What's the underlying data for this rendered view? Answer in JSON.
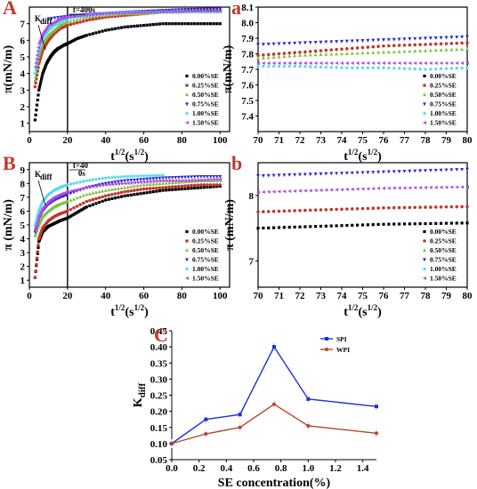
{
  "colors": {
    "series": [
      "#000000",
      "#c0392b",
      "#7dc242",
      "#2a2ad0",
      "#56d8f0",
      "#b24de0"
    ],
    "spi": "#1c2fd6",
    "wpi": "#b5462a",
    "letter": "#c0392b"
  },
  "chart_data": [
    {
      "id": "A",
      "type": "scatter",
      "letter": "A",
      "xlabel_base": "t",
      "xlabel_sup": "1/2",
      "xlabel_unit_base": "(s",
      "xlabel_unit_sup": "1/2",
      "xlabel_close": ")",
      "ylabel": "π(mN/m)",
      "xlim": [
        0,
        105
      ],
      "ylim": [
        0.5,
        8
      ],
      "xticks": [
        0,
        20,
        40,
        60,
        80,
        100
      ],
      "yticks": [
        1,
        2,
        3,
        4,
        5,
        6,
        7
      ],
      "vline_x": 20,
      "annotations": [
        "K",
        "diff",
        "t=400s"
      ],
      "legend": [
        "0.00%SE",
        "0.25%SE",
        "0.50%SE",
        "0.75%SE",
        "1.00%SE",
        "1.50%SE"
      ],
      "series": [
        {
          "name": "0.00%SE",
          "x": [
            3,
            5,
            7,
            9,
            11,
            13,
            15,
            18,
            20,
            25,
            30,
            40,
            50,
            60,
            70,
            80,
            90,
            100
          ],
          "y": [
            1.2,
            3.0,
            4.0,
            4.6,
            5.0,
            5.3,
            5.5,
            5.7,
            5.8,
            6.1,
            6.3,
            6.6,
            6.8,
            6.9,
            7.0,
            7.0,
            7.0,
            7.0
          ]
        },
        {
          "name": "0.25%SE",
          "x": [
            3,
            5,
            7,
            10,
            13,
            16,
            20,
            30,
            40,
            50,
            60,
            70,
            80,
            90,
            100
          ],
          "y": [
            3.2,
            4.6,
            5.4,
            6.0,
            6.4,
            6.7,
            6.9,
            7.2,
            7.4,
            7.5,
            7.6,
            7.7,
            7.7,
            7.8,
            7.8
          ]
        },
        {
          "name": "0.50%SE",
          "x": [
            3,
            5,
            7,
            10,
            13,
            16,
            20,
            30,
            40,
            50,
            60,
            70,
            80,
            90,
            100
          ],
          "y": [
            3.6,
            5.0,
            5.8,
            6.3,
            6.6,
            6.9,
            7.1,
            7.4,
            7.5,
            7.6,
            7.6,
            7.7,
            7.7,
            7.8,
            7.8
          ]
        },
        {
          "name": "0.75%SE",
          "x": [
            10,
            20,
            30,
            40,
            50,
            60,
            70,
            80,
            90,
            100
          ],
          "y": [
            7.3,
            7.45,
            7.55,
            7.62,
            7.7,
            7.75,
            7.8,
            7.85,
            7.88,
            7.9
          ]
        },
        {
          "name": "1.00%SE",
          "x": [
            3,
            5,
            7,
            10,
            13,
            16,
            20,
            30,
            40,
            50,
            60,
            70,
            80,
            90,
            100
          ],
          "y": [
            4.0,
            5.4,
            6.1,
            6.6,
            6.9,
            7.1,
            7.3,
            7.5,
            7.6,
            7.7,
            7.7,
            7.7,
            7.7,
            7.7,
            7.7
          ]
        },
        {
          "name": "1.50%SE",
          "x": [
            3,
            5,
            7,
            10,
            13,
            16,
            20,
            30,
            40,
            50,
            60,
            70,
            80,
            90,
            100
          ],
          "y": [
            4.4,
            5.8,
            6.4,
            6.9,
            7.1,
            7.3,
            7.4,
            7.5,
            7.6,
            7.65,
            7.7,
            7.72,
            7.75,
            7.75,
            7.75
          ]
        }
      ]
    },
    {
      "id": "a",
      "type": "scatter",
      "letter": "a",
      "xlabel_base": "t",
      "xlabel_sup": "1/2",
      "xlabel_unit_base": "(s",
      "xlabel_unit_sup": "1/2",
      "xlabel_close": ")",
      "ylabel": "π(mN/m)",
      "xlim": [
        70,
        80
      ],
      "ylim": [
        7.3,
        8.1
      ],
      "xticks": [
        70,
        71,
        72,
        73,
        74,
        75,
        76,
        77,
        78,
        79,
        80
      ],
      "yticks": [
        7.4,
        7.5,
        7.6,
        7.7,
        7.8,
        7.9,
        8.0,
        8.1
      ],
      "legend": [
        "0.00%SE",
        "0.25%SE",
        "0.50%SE",
        "0.75%SE",
        "1.00%SE",
        "1.50%SE"
      ],
      "series": [
        {
          "name": "0.25%SE",
          "x": [
            70,
            72,
            74,
            76,
            78,
            80
          ],
          "y": [
            7.79,
            7.81,
            7.83,
            7.85,
            7.86,
            7.87
          ]
        },
        {
          "name": "0.50%SE",
          "x": [
            70,
            72,
            74,
            76,
            78,
            80
          ],
          "y": [
            7.77,
            7.79,
            7.8,
            7.81,
            7.82,
            7.83
          ]
        },
        {
          "name": "0.75%SE",
          "x": [
            70,
            72,
            74,
            76,
            78,
            80
          ],
          "y": [
            7.86,
            7.87,
            7.88,
            7.89,
            7.9,
            7.91
          ]
        },
        {
          "name": "1.00%SE",
          "x": [
            70,
            72,
            74,
            76,
            78,
            80
          ],
          "y": [
            7.72,
            7.72,
            7.71,
            7.71,
            7.7,
            7.71
          ]
        },
        {
          "name": "1.50%SE",
          "x": [
            70,
            72,
            74,
            76,
            78,
            80
          ],
          "y": [
            7.74,
            7.74,
            7.74,
            7.74,
            7.74,
            7.74
          ]
        }
      ]
    },
    {
      "id": "B",
      "type": "scatter",
      "letter": "B",
      "xlabel_base": "t",
      "xlabel_sup": "1/2",
      "xlabel_unit_base": "(s",
      "xlabel_unit_sup": "1/2",
      "xlabel_close": ")",
      "ylabel": "π (mN/m)",
      "xlim": [
        0,
        105
      ],
      "ylim": [
        0.5,
        9.5
      ],
      "xticks": [
        0,
        20,
        40,
        60,
        80,
        100
      ],
      "yticks": [
        1,
        2,
        3,
        4,
        5,
        6,
        7,
        8,
        9
      ],
      "vline_x": 20,
      "annotations": [
        "K",
        "diff",
        "t=40",
        "0s"
      ],
      "legend": [
        "0.00%SE",
        "0.25%SE",
        "0.50%SE",
        "0.75%SE",
        "1.00%SE",
        "1.50%SE"
      ],
      "series": [
        {
          "name": "0.00%SE",
          "x": [
            3,
            5,
            7,
            10,
            13,
            16,
            20,
            25,
            30,
            40,
            50,
            60,
            70,
            80,
            90,
            100
          ],
          "y": [
            1.2,
            3.8,
            4.5,
            4.9,
            5.1,
            5.3,
            5.5,
            5.9,
            6.3,
            6.8,
            7.1,
            7.3,
            7.5,
            7.6,
            7.7,
            7.8
          ]
        },
        {
          "name": "0.25%SE",
          "x": [
            3,
            5,
            7,
            10,
            13,
            16,
            20,
            30,
            40,
            50,
            60,
            70,
            80,
            90,
            100
          ],
          "y": [
            1.2,
            4.0,
            4.8,
            5.3,
            5.6,
            5.8,
            6.0,
            6.7,
            7.1,
            7.4,
            7.6,
            7.7,
            7.8,
            7.9,
            7.9
          ]
        },
        {
          "name": "0.50%SE",
          "x": [
            3,
            5,
            7,
            10,
            13,
            16,
            20,
            30,
            40,
            50,
            60,
            70,
            80,
            90,
            100
          ],
          "y": [
            4.2,
            5.0,
            5.6,
            6.0,
            6.3,
            6.5,
            6.7,
            7.2,
            7.5,
            7.7,
            7.9,
            8.0,
            8.1,
            8.2,
            8.2
          ]
        },
        {
          "name": "0.75%SE",
          "x": [
            3,
            5,
            7,
            10,
            13,
            16,
            20,
            30,
            40,
            50,
            60,
            70,
            80,
            90,
            100
          ],
          "y": [
            4.5,
            5.4,
            6.0,
            6.5,
            6.8,
            7.0,
            7.2,
            7.7,
            8.0,
            8.2,
            8.3,
            8.4,
            8.45,
            8.5,
            8.5
          ]
        },
        {
          "name": "1.00%SE",
          "x": [
            3,
            5,
            7,
            10,
            13,
            16,
            20,
            30,
            40,
            50,
            60,
            70
          ],
          "y": [
            5.0,
            6.0,
            6.7,
            7.2,
            7.5,
            7.7,
            7.9,
            8.2,
            8.4,
            8.5,
            8.55,
            8.6
          ]
        },
        {
          "name": "1.50%SE",
          "x": [
            3,
            5,
            7,
            10,
            13,
            16,
            20,
            30,
            40,
            50,
            60,
            70,
            80,
            90,
            100
          ],
          "y": [
            4.6,
            5.6,
            6.2,
            6.7,
            7.0,
            7.2,
            7.4,
            7.7,
            7.9,
            8.0,
            8.1,
            8.2,
            8.2,
            8.25,
            8.3
          ]
        }
      ]
    },
    {
      "id": "b",
      "type": "scatter",
      "letter": "b",
      "xlabel_base": "t",
      "xlabel_sup": "1/2",
      "xlabel_unit_base": "(s",
      "xlabel_unit_sup": "1/2",
      "xlabel_close": ")",
      "ylabel": "π (mN/m)",
      "xlim": [
        70,
        80
      ],
      "ylim": [
        6.6,
        8.5
      ],
      "xticks": [
        70,
        71,
        72,
        73,
        74,
        75,
        76,
        77,
        78,
        79,
        80
      ],
      "yticks": [
        7,
        8
      ],
      "legend": [
        "0.00%SE",
        "0.25%SE",
        "0.50%SE",
        "0.75%SE",
        "1.00%SE",
        "1.50%SE"
      ],
      "series": [
        {
          "name": "0.00%SE",
          "x": [
            70,
            72,
            74,
            76,
            78,
            80
          ],
          "y": [
            7.5,
            7.52,
            7.54,
            7.56,
            7.57,
            7.58
          ]
        },
        {
          "name": "0.25%SE",
          "x": [
            70,
            72,
            74,
            76,
            78,
            80
          ],
          "y": [
            7.75,
            7.77,
            7.79,
            7.81,
            7.82,
            7.83
          ]
        },
        {
          "name": "1.50%SE",
          "x": [
            70,
            72,
            74,
            76,
            78,
            80
          ],
          "y": [
            8.05,
            8.07,
            8.09,
            8.11,
            8.12,
            8.13
          ]
        },
        {
          "name": "0.75%SE",
          "x": [
            70,
            72,
            74,
            76,
            78,
            80
          ],
          "y": [
            8.3,
            8.32,
            8.34,
            8.36,
            8.38,
            8.4
          ]
        }
      ]
    },
    {
      "id": "C",
      "type": "line",
      "letter": "C",
      "xlabel": "SE concentration(%)",
      "ylabel_base": "K",
      "ylabel_sub": "diff",
      "xlim": [
        0,
        1.5
      ],
      "ylim": [
        0.05,
        0.45
      ],
      "xticks": [
        0.0,
        0.2,
        0.4,
        0.6,
        0.8,
        1.0,
        1.2,
        1.4
      ],
      "yticks": [
        0.05,
        0.1,
        0.15,
        0.2,
        0.25,
        0.3,
        0.35,
        0.4,
        0.45
      ],
      "x": [
        0,
        0.25,
        0.5,
        0.75,
        1.0,
        1.5
      ],
      "series": [
        {
          "name": "SPI",
          "values": [
            0.1,
            0.175,
            0.19,
            0.4,
            0.238,
            0.215
          ]
        },
        {
          "name": "WPI",
          "values": [
            0.1,
            0.13,
            0.15,
            0.222,
            0.155,
            0.132
          ]
        }
      ],
      "legend_placement": "top-right"
    }
  ]
}
